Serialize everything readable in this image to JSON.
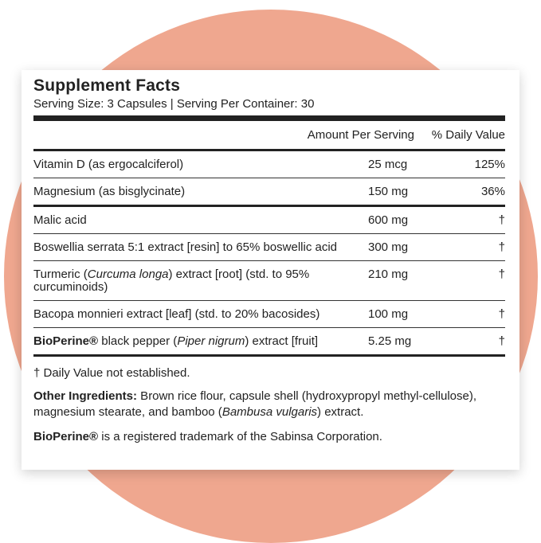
{
  "title": "Supplement Facts",
  "serving": "Serving Size: 3 Capsules | Serving Per Container: 30",
  "header": {
    "amount": "Amount Per Serving",
    "dv": "% Daily Value"
  },
  "groups": [
    [
      {
        "name": [
          {
            "text": "Vitamin D (as ergocalciferol)"
          }
        ],
        "amount": "25 mcg",
        "dv": "125%"
      },
      {
        "name": [
          {
            "text": "Magnesium (as bisglycinate)"
          }
        ],
        "amount": "150 mg",
        "dv": "36%"
      }
    ],
    [
      {
        "name": [
          {
            "text": "Malic acid"
          }
        ],
        "amount": "600 mg",
        "dv": "†"
      },
      {
        "name": [
          {
            "text": "Boswellia serrata 5:1 extract [resin] to 65% boswellic acid"
          }
        ],
        "amount": "300 mg",
        "dv": "†"
      },
      {
        "name": [
          {
            "text": "Turmeric ("
          },
          {
            "text": "Curcuma longa",
            "italic": true
          },
          {
            "text": ") extract [root] (std. to 95% curcuminoids)"
          }
        ],
        "amount": "210 mg",
        "dv": "†"
      },
      {
        "name": [
          {
            "text": "Bacopa monnieri extract [leaf] (std. to 20% bacosides)"
          }
        ],
        "amount": "100 mg",
        "dv": "†"
      },
      {
        "name": [
          {
            "text": "BioPerine®",
            "bold": true
          },
          {
            "text": " black pepper ("
          },
          {
            "text": "Piper nigrum",
            "italic": true
          },
          {
            "text": ") extract [fruit]"
          }
        ],
        "amount": "5.25 mg",
        "dv": "†"
      }
    ]
  ],
  "footnote": "† Daily Value not established.",
  "other": [
    {
      "text": "Other Ingredients:",
      "bold": true
    },
    {
      "text": " Brown rice flour, capsule shell (hydroxypropyl methyl-cellulose), magnesium stearate, and bamboo ("
    },
    {
      "text": "Bambusa vulgaris",
      "italic": true
    },
    {
      "text": ") extract."
    }
  ],
  "trademark": [
    {
      "text": "BioPerine®",
      "bold": true
    },
    {
      "text": " is a registered trademark of the Sabinsa Corporation."
    }
  ]
}
